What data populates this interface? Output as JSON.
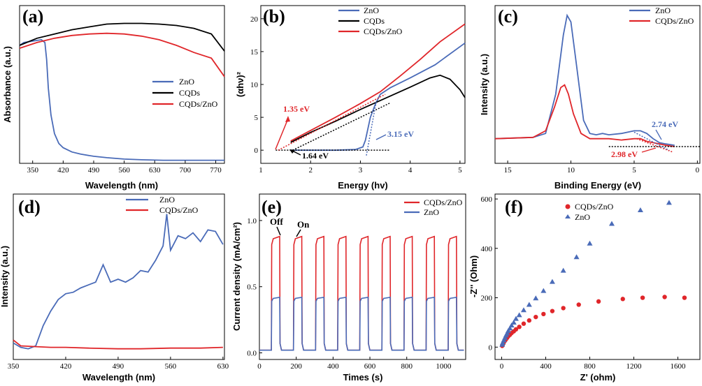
{
  "colors": {
    "blue": "#4a6bb8",
    "red": "#e0262a",
    "black": "#000000"
  },
  "panels": {
    "a": {
      "label": "(a)",
      "xlabel": "Wavelength (nm)",
      "ylabel": "Absorbance (a.u.)",
      "xticks": [
        "350",
        "420",
        "490",
        "560",
        "630",
        "700",
        "770"
      ],
      "legend": [
        "ZnO",
        "CQDs",
        "CQDs/ZnO"
      ]
    },
    "b": {
      "label": "(b)",
      "xlabel": "Energy (hv)",
      "ylabel": "(αhν)²",
      "xticks": [
        "1",
        "2",
        "3",
        "4",
        "5"
      ],
      "yticks": [
        "0",
        "5",
        "10",
        "15",
        "20"
      ],
      "legend": [
        "ZnO",
        "CQDs",
        "CQDs/ZnO"
      ],
      "annotations": [
        "1.35 eV",
        "1.64 eV",
        "3.15 eV"
      ]
    },
    "c": {
      "label": "(c)",
      "xlabel": "Binding Energy (eV)",
      "ylabel": "Intensity (a.u.)",
      "xticks": [
        "15",
        "10",
        "5",
        "0"
      ],
      "legend": [
        "ZnO",
        "CQDs/ZnO"
      ],
      "annotations": [
        "2.74  eV",
        "2.98 eV"
      ]
    },
    "d": {
      "label": "(d)",
      "xlabel": "Wavelength (nm)",
      "ylabel": "Intensity (a.u.)",
      "xticks": [
        "350",
        "420",
        "490",
        "560",
        "630"
      ],
      "legend": [
        "ZnO",
        "CQDs/ZnO"
      ]
    },
    "e": {
      "label": "(e)",
      "xlabel": "Times (s)",
      "ylabel": "Current density (mA/cm²)",
      "xticks": [
        "0",
        "200",
        "400",
        "600",
        "800",
        "1000"
      ],
      "yticks": [
        "0.0",
        "0.5",
        "1.0"
      ],
      "legend": [
        "CQDs/ZnO",
        "ZnO"
      ],
      "annotations": [
        "Off",
        "On"
      ]
    },
    "f": {
      "label": "(f)",
      "xlabel": "Z' (ohm)",
      "ylabel": "-Z'' (Ohm)",
      "xticks": [
        "0",
        "400",
        "800",
        "1200",
        "1600"
      ],
      "yticks": [
        "0",
        "200",
        "400",
        "600"
      ],
      "legend": [
        "CQDs/ZnO",
        "ZnO"
      ]
    }
  },
  "chart_data": [
    {
      "type": "line",
      "panel": "a",
      "title": "(a)",
      "xlabel": "Wavelength (nm)",
      "ylabel": "Absorbance (a.u.)",
      "xlim": [
        320,
        790
      ],
      "series": [
        {
          "name": "ZnO",
          "x": [
            320,
            330,
            350,
            370,
            378,
            382,
            386,
            392,
            400,
            410,
            420,
            440,
            460,
            490,
            520,
            560,
            600,
            650,
            700,
            790
          ],
          "y": [
            0.82,
            0.84,
            0.85,
            0.86,
            0.84,
            0.72,
            0.52,
            0.33,
            0.2,
            0.13,
            0.1,
            0.07,
            0.055,
            0.04,
            0.03,
            0.02,
            0.015,
            0.012,
            0.012,
            0.012
          ]
        },
        {
          "name": "CQDs",
          "x": [
            320,
            360,
            400,
            440,
            480,
            520,
            560,
            600,
            640,
            680,
            720,
            760,
            790
          ],
          "y": [
            0.82,
            0.87,
            0.9,
            0.93,
            0.95,
            0.97,
            0.975,
            0.975,
            0.97,
            0.96,
            0.94,
            0.9,
            0.78
          ]
        },
        {
          "name": "CQDs/ZnO",
          "x": [
            320,
            360,
            400,
            440,
            480,
            520,
            560,
            600,
            640,
            680,
            720,
            760,
            790
          ],
          "y": [
            0.8,
            0.84,
            0.87,
            0.89,
            0.9,
            0.905,
            0.9,
            0.885,
            0.86,
            0.82,
            0.77,
            0.73,
            0.6
          ]
        }
      ]
    },
    {
      "type": "line",
      "panel": "b",
      "title": "(b)",
      "xlabel": "Energy (hv)",
      "ylabel": "(αhν)²",
      "xlim": [
        1,
        5.1
      ],
      "ylim": [
        -2,
        22
      ],
      "series": [
        {
          "name": "ZnO",
          "x": [
            1.6,
            2.5,
            2.9,
            3.05,
            3.1,
            3.2,
            3.3,
            3.4,
            3.6,
            4.0,
            4.5,
            5.1
          ],
          "y": [
            0,
            0,
            0.1,
            0.5,
            1.5,
            5,
            7,
            8.5,
            9.5,
            11,
            13,
            16.3
          ]
        },
        {
          "name": "CQDs",
          "x": [
            1.6,
            2.0,
            2.5,
            3.0,
            3.5,
            4.0,
            4.4,
            4.6,
            4.8,
            5.0,
            5.1
          ],
          "y": [
            1.2,
            2.7,
            4.4,
            6.2,
            7.9,
            9.6,
            11,
            11.4,
            10.8,
            9.2,
            8
          ]
        },
        {
          "name": "CQDs/ZnO",
          "x": [
            1.6,
            2.0,
            2.5,
            3.0,
            3.4,
            3.8,
            4.2,
            4.6,
            5.1
          ],
          "y": [
            1.4,
            3.0,
            5.0,
            7.1,
            8.9,
            11.3,
            13.8,
            16.5,
            19.2
          ]
        }
      ],
      "fit_intercepts_eV": [
        1.35,
        1.64,
        3.15
      ]
    },
    {
      "type": "line",
      "panel": "c",
      "title": "(c)",
      "xlabel": "Binding Energy (eV)",
      "ylabel": "Intensity (a.u.)",
      "xlim": [
        16,
        -0.2
      ],
      "series": [
        {
          "name": "ZnO",
          "x": [
            16,
            13,
            12,
            11.2,
            10.6,
            10.3,
            10.0,
            9.6,
            9.0,
            8.5,
            8.0,
            7.5,
            7,
            6,
            5,
            4.5,
            4,
            3.5,
            3,
            2.5,
            1.8
          ],
          "y": [
            0.06,
            0.07,
            0.1,
            0.4,
            0.85,
            1.0,
            0.95,
            0.65,
            0.2,
            0.1,
            0.09,
            0.1,
            0.09,
            0.1,
            0.12,
            0.12,
            0.1,
            0.06,
            0.03,
            0.02,
            0.01
          ]
        },
        {
          "name": "CQDs/ZnO",
          "x": [
            16,
            13,
            12,
            11.3,
            10.8,
            10.5,
            10.2,
            9.8,
            9.2,
            8.5,
            8,
            7,
            6,
            5,
            4.5,
            4,
            3.5,
            3,
            2.5,
            1.8
          ],
          "y": [
            0.06,
            0.07,
            0.12,
            0.3,
            0.45,
            0.47,
            0.4,
            0.25,
            0.1,
            0.06,
            0.06,
            0.06,
            0.05,
            0.06,
            0.06,
            0.04,
            0.03,
            0.02,
            0.01,
            0.0
          ]
        }
      ],
      "vbm_eV": {
        "ZnO": 2.74,
        "CQDs/ZnO": 2.98
      }
    },
    {
      "type": "line",
      "panel": "d",
      "title": "(d)",
      "xlabel": "Wavelength (nm)",
      "ylabel": "Intensity (a.u.)",
      "xlim": [
        350,
        632
      ],
      "series": [
        {
          "name": "ZnO",
          "x": [
            350,
            360,
            370,
            380,
            390,
            400,
            410,
            420,
            430,
            440,
            450,
            460,
            470,
            480,
            490,
            500,
            510,
            520,
            530,
            540,
            550,
            555,
            560,
            570,
            580,
            590,
            600,
            610,
            620,
            630
          ],
          "y": [
            0.08,
            0.05,
            0.04,
            0.06,
            0.2,
            0.3,
            0.38,
            0.42,
            0.43,
            0.46,
            0.48,
            0.5,
            0.62,
            0.5,
            0.52,
            0.5,
            0.53,
            0.58,
            0.57,
            0.65,
            0.75,
            0.97,
            0.72,
            0.82,
            0.8,
            0.84,
            0.78,
            0.86,
            0.85,
            0.76
          ]
        },
        {
          "name": "CQDs/ZnO",
          "x": [
            350,
            360,
            380,
            400,
            420,
            450,
            490,
            520,
            560,
            600,
            630
          ],
          "y": [
            0.1,
            0.06,
            0.055,
            0.05,
            0.05,
            0.045,
            0.04,
            0.04,
            0.045,
            0.045,
            0.05
          ]
        }
      ]
    },
    {
      "type": "line",
      "panel": "e",
      "title": "(e)",
      "xlabel": "Times (s)",
      "ylabel": "Current density (mA/cm²)",
      "xlim": [
        0,
        1120
      ],
      "ylim": [
        -0.05,
        1.2
      ],
      "series": [
        {
          "name": "CQDs/ZnO",
          "on_current": 0.88,
          "off_current": 0.02,
          "on_intervals_s": [
            [
              65,
              110
            ],
            [
              185,
              230
            ],
            [
              305,
              350
            ],
            [
              425,
              470
            ],
            [
              545,
              590
            ],
            [
              665,
              710
            ],
            [
              785,
              830
            ],
            [
              905,
              950
            ],
            [
              1025,
              1070
            ]
          ]
        },
        {
          "name": "ZnO",
          "on_current": 0.42,
          "off_current": 0.02,
          "on_intervals_s": [
            [
              65,
              110
            ],
            [
              185,
              230
            ],
            [
              305,
              350
            ],
            [
              425,
              470
            ],
            [
              545,
              590
            ],
            [
              665,
              710
            ],
            [
              785,
              830
            ],
            [
              905,
              950
            ],
            [
              1025,
              1070
            ]
          ]
        }
      ]
    },
    {
      "type": "scatter",
      "panel": "f",
      "title": "(f)",
      "xlabel": "Z' (ohm)",
      "ylabel": "-Z'' (Ohm)",
      "xlim": [
        -60,
        1800
      ],
      "ylim": [
        -50,
        620
      ],
      "series": [
        {
          "name": "CQDs/ZnO",
          "x": [
            5,
            10,
            15,
            20,
            30,
            40,
            50,
            60,
            75,
            90,
            110,
            130,
            160,
            200,
            250,
            310,
            380,
            460,
            560,
            700,
            880,
            1100,
            1280,
            1480,
            1660
          ],
          "y": [
            5,
            10,
            15,
            20,
            26,
            32,
            38,
            44,
            50,
            57,
            64,
            72,
            82,
            95,
            108,
            122,
            134,
            146,
            158,
            172,
            185,
            195,
            200,
            203,
            200
          ]
        },
        {
          "name": "ZnO",
          "x": [
            5,
            10,
            20,
            30,
            40,
            50,
            60,
            75,
            90,
            110,
            130,
            160,
            200,
            250,
            310,
            380,
            460,
            560,
            680,
            800,
            1000,
            1260,
            1520
          ],
          "y": [
            10,
            18,
            28,
            38,
            48,
            56,
            66,
            76,
            88,
            100,
            115,
            130,
            150,
            172,
            198,
            228,
            265,
            310,
            365,
            420,
            500,
            555,
            585
          ]
        }
      ]
    }
  ]
}
